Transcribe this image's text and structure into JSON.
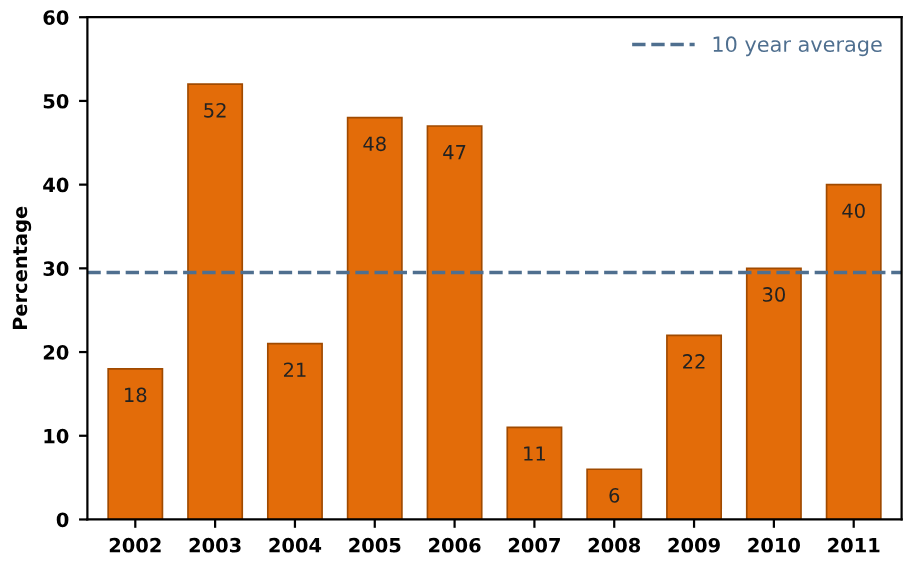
{
  "chart_data": {
    "type": "bar",
    "ylabel": "Percentage",
    "categories": [
      "2002",
      "2003",
      "2004",
      "2005",
      "2006",
      "2007",
      "2008",
      "2009",
      "2010",
      "2011"
    ],
    "values": [
      18,
      52,
      21,
      48,
      47,
      11,
      6,
      22,
      30,
      40
    ],
    "color": "#e36c09",
    "ylim": [
      0,
      60
    ],
    "yticks": [
      0,
      10,
      20,
      30,
      40,
      50,
      60
    ],
    "data_labels": true,
    "ref_lines": [
      {
        "axis": "y",
        "value": 29.5,
        "label": "10 year average",
        "color": "#4f6f8f",
        "line_style": "dashed"
      }
    ],
    "legend": "top right",
    "grid": false
  }
}
